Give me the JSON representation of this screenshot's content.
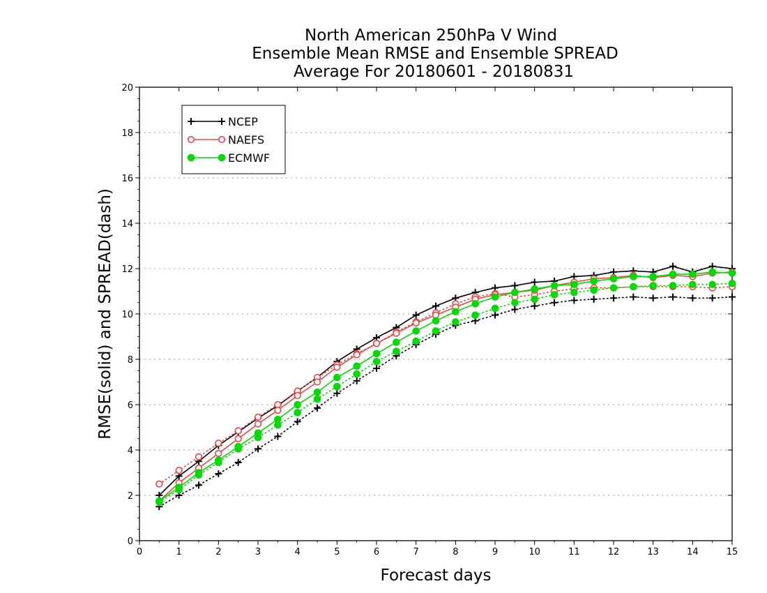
{
  "chart_data": {
    "type": "line",
    "title": [
      "North American 250hPa V Wind",
      "Ensemble Mean RMSE and Ensemble SPREAD",
      "Average For 20180601 - 20180831"
    ],
    "xlabel": "Forecast days",
    "ylabel": "RMSE(solid) and SPREAD(dash)",
    "xlim": [
      0,
      15
    ],
    "ylim": [
      0,
      20
    ],
    "xticks": [
      0,
      1,
      2,
      3,
      4,
      5,
      6,
      7,
      8,
      9,
      10,
      11,
      12,
      13,
      14,
      15
    ],
    "yticks": [
      0,
      2,
      4,
      6,
      8,
      10,
      12,
      14,
      16,
      18,
      20
    ],
    "grid": "horizontal dotted",
    "legend_position": "top-left",
    "x": [
      0.5,
      1,
      1.5,
      2,
      2.5,
      3,
      3.5,
      4,
      4.5,
      5,
      5.5,
      6,
      6.5,
      7,
      7.5,
      8,
      8.5,
      9,
      9.5,
      10,
      10.5,
      11,
      11.5,
      12,
      12.5,
      13,
      13.5,
      14,
      14.5,
      15
    ],
    "series": [
      {
        "name": "NCEP",
        "color": "#000000",
        "marker": "plus",
        "rmse": [
          2.0,
          2.85,
          3.5,
          4.2,
          4.8,
          5.4,
          5.95,
          6.6,
          7.2,
          7.9,
          8.45,
          8.95,
          9.4,
          9.95,
          10.35,
          10.7,
          10.95,
          11.15,
          11.25,
          11.4,
          11.45,
          11.65,
          11.7,
          11.85,
          11.9,
          11.85,
          12.1,
          11.85,
          12.1,
          12.0
        ],
        "spread": [
          1.5,
          2.0,
          2.45,
          2.95,
          3.45,
          4.05,
          4.6,
          5.25,
          5.85,
          6.5,
          7.05,
          7.6,
          8.15,
          8.65,
          9.1,
          9.5,
          9.7,
          9.95,
          10.2,
          10.35,
          10.5,
          10.6,
          10.65,
          10.7,
          10.75,
          10.7,
          10.75,
          10.7,
          10.7,
          10.75
        ]
      },
      {
        "name": "NAEFS",
        "color": "#f04646",
        "marker": "circle-open",
        "rmse": [
          1.75,
          2.55,
          3.2,
          3.85,
          4.5,
          5.15,
          5.75,
          6.4,
          7.0,
          7.65,
          8.2,
          8.7,
          9.15,
          9.6,
          9.95,
          10.3,
          10.65,
          10.85,
          10.95,
          11.05,
          11.25,
          11.4,
          11.55,
          11.6,
          11.7,
          11.6,
          11.7,
          11.65,
          11.8,
          11.85
        ],
        "spread": [
          2.5,
          3.1,
          3.7,
          4.3,
          4.85,
          5.45,
          6.0,
          6.6,
          7.2,
          7.75,
          8.25,
          8.7,
          9.2,
          9.65,
          10.05,
          10.45,
          10.75,
          10.9,
          10.75,
          10.85,
          11.0,
          11.1,
          11.15,
          11.15,
          11.2,
          11.2,
          11.2,
          11.2,
          11.15,
          11.2
        ]
      },
      {
        "name": "ECMWF",
        "color": "#00dc00",
        "marker": "circle-filled",
        "rmse": [
          1.75,
          2.35,
          3.0,
          3.55,
          4.15,
          4.75,
          5.35,
          6.0,
          6.55,
          7.2,
          7.7,
          8.25,
          8.75,
          9.25,
          9.7,
          10.1,
          10.45,
          10.75,
          10.95,
          11.1,
          11.25,
          11.3,
          11.45,
          11.55,
          11.65,
          11.65,
          11.75,
          11.75,
          11.85,
          11.8
        ],
        "spread": [
          1.7,
          2.25,
          2.9,
          3.45,
          4.05,
          4.55,
          5.1,
          5.65,
          6.25,
          6.8,
          7.35,
          7.9,
          8.35,
          8.8,
          9.25,
          9.65,
          9.95,
          10.25,
          10.5,
          10.65,
          10.85,
          10.95,
          11.05,
          11.15,
          11.2,
          11.25,
          11.25,
          11.3,
          11.3,
          11.35
        ]
      }
    ]
  }
}
